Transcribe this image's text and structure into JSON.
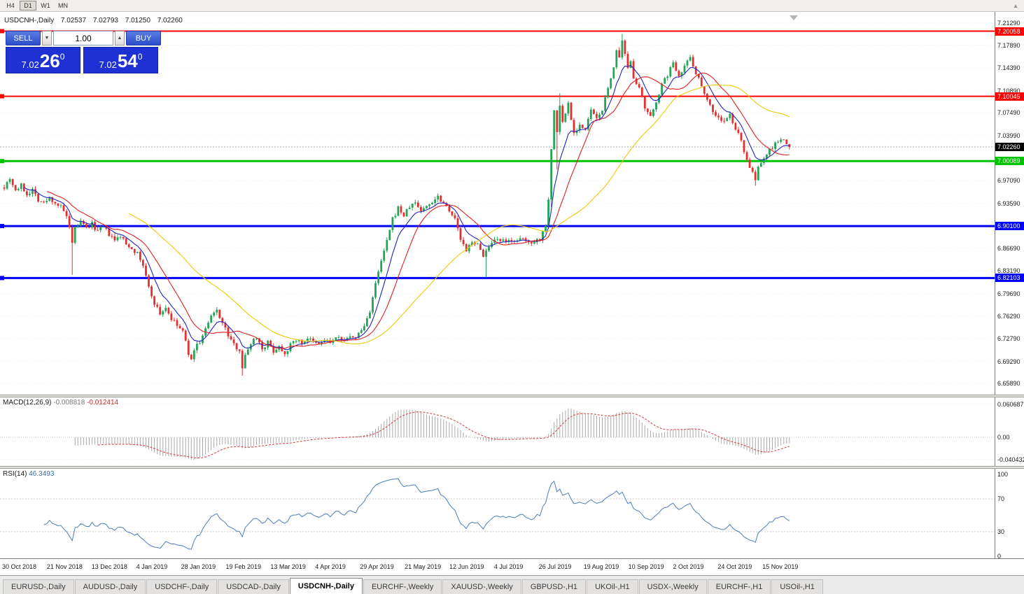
{
  "accent_colors": {
    "resistance_red": "#ff0000",
    "support_green": "#00c300",
    "support_blue": "#0000ff",
    "current_black": "#000000",
    "trade_blue": "#1d31d4"
  },
  "toolbar": {
    "timeframes": [
      {
        "label": "H4",
        "active": false
      },
      {
        "label": "D1",
        "active": true
      },
      {
        "label": "W1",
        "active": false
      },
      {
        "label": "MN",
        "active": false
      }
    ]
  },
  "chart_header": {
    "symbol": "USDCNH-,Daily",
    "open": "7.02537",
    "high": "7.02793",
    "low": "7.01250",
    "close": "7.02260"
  },
  "trade_panel": {
    "sell_label": "SELL",
    "buy_label": "BUY",
    "volume": "1.00",
    "sell_price": {
      "prefix": "7.02",
      "pips": "26",
      "pipette": "0"
    },
    "buy_price": {
      "prefix": "7.02",
      "pips": "54",
      "pipette": "0"
    }
  },
  "indicators": {
    "macd": {
      "title": "MACD(12,26,9)",
      "value_main": "-0.008818",
      "value_signal": "-0.012414",
      "axis_labels": [
        "0.060687",
        "0.00",
        "-0.040432"
      ]
    },
    "rsi": {
      "title": "RSI(14)",
      "value": "46.3493",
      "axis_labels": [
        "100",
        "70",
        "30",
        "0"
      ]
    }
  },
  "date_axis": [
    "30 Oct 2018",
    "21 Nov 2018",
    "13 Dec 2018",
    "4 Jan 2019",
    "28 Jan 2019",
    "19 Feb 2019",
    "13 Mar 2019",
    "4 Apr 2019",
    "29 Apr 2019",
    "21 May 2019",
    "12 Jun 2019",
    "4 Jul 2019",
    "26 Jul 2019",
    "19 Aug 2019",
    "10 Sep 2019",
    "2 Oct 2019",
    "24 Oct 2019",
    "15 Nov 2019"
  ],
  "tabbar": {
    "tabs": [
      {
        "label": "EURUSD-,Daily",
        "active": false
      },
      {
        "label": "AUDUSD-,Daily",
        "active": false
      },
      {
        "label": "USDCHF-,Daily",
        "active": false
      },
      {
        "label": "USDCAD-,Daily",
        "active": false
      },
      {
        "label": "USDCNH-,Daily",
        "active": true
      },
      {
        "label": "EURCHF-,Weekly",
        "active": false
      },
      {
        "label": "XAUUSD-,Weekly",
        "active": false
      },
      {
        "label": "GBPUSD-,H1",
        "active": false
      },
      {
        "label": "UKOil-,H1",
        "active": false
      },
      {
        "label": "USDX-,Weekly",
        "active": false
      },
      {
        "label": "EURCHF-,H1",
        "active": false
      },
      {
        "label": "USOil-,H1",
        "active": false
      }
    ]
  },
  "chart_data": {
    "type": "candlestick",
    "symbol": "USDCNH",
    "timeframe": "Daily",
    "y_axis_labels": [
      "7.21290",
      "7.17890",
      "7.14390",
      "7.10890",
      "7.07490",
      "7.03990",
      "6.97090",
      "6.93590",
      "6.86690",
      "6.83190",
      "6.79690",
      "6.76290",
      "6.72790",
      "6.69290",
      "6.65890"
    ],
    "y_range": [
      6.6589,
      7.2129
    ],
    "horizontal_lines": [
      {
        "price": 7.20058,
        "label": "7.20058",
        "color": "#ff0000",
        "width": 2
      },
      {
        "price": 7.10045,
        "label": "7.10045",
        "color": "#ff0000",
        "width": 2
      },
      {
        "price": 7.00089,
        "label": "7.00089",
        "color": "#00c300",
        "width": 3
      },
      {
        "price": 6.901,
        "label": "6.90100",
        "color": "#0000ff",
        "width": 3
      },
      {
        "price": 6.82103,
        "label": "6.82103",
        "color": "#0000ff",
        "width": 3
      }
    ],
    "current_price": {
      "value": 7.0226,
      "label": "7.02260",
      "badge_color": "#000000"
    },
    "candles": {
      "count": 278,
      "up_color": "#23a456",
      "down_color": "#e03030",
      "last_close": 7.0226,
      "close_anchors": [
        [
          0,
          6.962
        ],
        [
          2,
          6.975
        ],
        [
          4,
          6.956
        ],
        [
          6,
          6.963
        ],
        [
          8,
          6.95
        ],
        [
          10,
          6.957
        ],
        [
          12,
          6.942
        ],
        [
          14,
          6.936
        ],
        [
          16,
          6.944
        ],
        [
          18,
          6.937
        ],
        [
          20,
          6.93
        ],
        [
          22,
          6.916
        ],
        [
          23,
          6.896
        ],
        [
          24,
          6.872
        ],
        [
          25,
          6.898
        ],
        [
          27,
          6.907
        ],
        [
          29,
          6.897
        ],
        [
          31,
          6.904
        ],
        [
          33,
          6.893
        ],
        [
          35,
          6.899
        ],
        [
          37,
          6.888
        ],
        [
          39,
          6.878
        ],
        [
          41,
          6.886
        ],
        [
          43,
          6.873
        ],
        [
          45,
          6.868
        ],
        [
          47,
          6.858
        ],
        [
          49,
          6.841
        ],
        [
          51,
          6.806
        ],
        [
          53,
          6.783
        ],
        [
          55,
          6.766
        ],
        [
          57,
          6.776
        ],
        [
          59,
          6.758
        ],
        [
          61,
          6.748
        ],
        [
          63,
          6.739
        ],
        [
          65,
          6.706
        ],
        [
          66,
          6.693
        ],
        [
          67,
          6.713
        ],
        [
          69,
          6.723
        ],
        [
          71,
          6.742
        ],
        [
          73,
          6.761
        ],
        [
          75,
          6.772
        ],
        [
          77,
          6.752
        ],
        [
          79,
          6.733
        ],
        [
          81,
          6.718
        ],
        [
          83,
          6.712
        ],
        [
          84,
          6.684
        ],
        [
          85,
          6.701
        ],
        [
          87,
          6.722
        ],
        [
          89,
          6.731
        ],
        [
          91,
          6.713
        ],
        [
          93,
          6.722
        ],
        [
          95,
          6.709
        ],
        [
          97,
          6.716
        ],
        [
          99,
          6.706
        ],
        [
          101,
          6.718
        ],
        [
          103,
          6.727
        ],
        [
          105,
          6.721
        ],
        [
          107,
          6.729
        ],
        [
          109,
          6.722
        ],
        [
          111,
          6.719
        ],
        [
          113,
          6.726
        ],
        [
          115,
          6.722
        ],
        [
          117,
          6.729
        ],
        [
          119,
          6.725
        ],
        [
          121,
          6.731
        ],
        [
          123,
          6.727
        ],
        [
          125,
          6.735
        ],
        [
          127,
          6.747
        ],
        [
          129,
          6.771
        ],
        [
          131,
          6.811
        ],
        [
          133,
          6.847
        ],
        [
          135,
          6.877
        ],
        [
          137,
          6.911
        ],
        [
          139,
          6.929
        ],
        [
          141,
          6.917
        ],
        [
          143,
          6.931
        ],
        [
          145,
          6.937
        ],
        [
          147,
          6.925
        ],
        [
          149,
          6.931
        ],
        [
          151,
          6.939
        ],
        [
          153,
          6.947
        ],
        [
          155,
          6.937
        ],
        [
          157,
          6.927
        ],
        [
          159,
          6.911
        ],
        [
          161,
          6.881
        ],
        [
          163,
          6.861
        ],
        [
          165,
          6.879
        ],
        [
          167,
          6.871
        ],
        [
          169,
          6.857
        ],
        [
          171,
          6.867
        ],
        [
          173,
          6.877
        ],
        [
          175,
          6.879
        ],
        [
          177,
          6.875
        ],
        [
          179,
          6.881
        ],
        [
          181,
          6.877
        ],
        [
          183,
          6.881
        ],
        [
          185,
          6.875
        ],
        [
          187,
          6.879
        ],
        [
          189,
          6.881
        ],
        [
          191,
          6.904
        ],
        [
          192,
          6.944
        ],
        [
          193,
          7.018
        ],
        [
          194,
          7.078
        ],
        [
          195,
          7.046
        ],
        [
          196,
          7.086
        ],
        [
          197,
          7.06
        ],
        [
          199,
          7.09
        ],
        [
          201,
          7.044
        ],
        [
          203,
          7.057
        ],
        [
          205,
          7.047
        ],
        [
          207,
          7.08
        ],
        [
          209,
          7.064
        ],
        [
          211,
          7.081
        ],
        [
          213,
          7.111
        ],
        [
          215,
          7.147
        ],
        [
          216,
          7.171
        ],
        [
          217,
          7.157
        ],
        [
          218,
          7.183
        ],
        [
          219,
          7.163
        ],
        [
          220,
          7.141
        ],
        [
          221,
          7.157
        ],
        [
          222,
          7.131
        ],
        [
          224,
          7.111
        ],
        [
          226,
          7.081
        ],
        [
          228,
          7.067
        ],
        [
          230,
          7.094
        ],
        [
          232,
          7.117
        ],
        [
          234,
          7.134
        ],
        [
          236,
          7.151
        ],
        [
          238,
          7.134
        ],
        [
          240,
          7.147
        ],
        [
          242,
          7.161
        ],
        [
          244,
          7.137
        ],
        [
          246,
          7.117
        ],
        [
          248,
          7.097
        ],
        [
          250,
          7.077
        ],
        [
          252,
          7.067
        ],
        [
          254,
          7.061
        ],
        [
          256,
          7.071
        ],
        [
          258,
          7.051
        ],
        [
          260,
          7.031
        ],
        [
          262,
          7.004
        ],
        [
          264,
          6.981
        ],
        [
          265,
          6.971
        ],
        [
          266,
          6.991
        ],
        [
          268,
          7.007
        ],
        [
          270,
          7.017
        ],
        [
          272,
          7.027
        ],
        [
          274,
          7.034
        ],
        [
          276,
          7.028
        ],
        [
          277,
          7.0226
        ]
      ],
      "wick_overrides": [
        {
          "i": 24,
          "low": 6.826
        },
        {
          "i": 84,
          "low": 6.671
        },
        {
          "i": 170,
          "low": 6.822
        },
        {
          "i": 193,
          "low": 6.93
        },
        {
          "i": 195,
          "low": 6.988
        },
        {
          "i": 196,
          "high": 7.105
        },
        {
          "i": 218,
          "high": 7.1965
        },
        {
          "i": 265,
          "low": 6.963
        }
      ]
    },
    "moving_averages": [
      {
        "type": "ema",
        "period": 8,
        "color": "#2424c4"
      },
      {
        "type": "sma",
        "period": 16,
        "color": "#e02020"
      },
      {
        "type": "sma",
        "period": 45,
        "color": "#eec908"
      }
    ],
    "macd": {
      "fast": 12,
      "slow": 26,
      "signal": 9,
      "histogram_color": "#a9a9a9",
      "signal_color": "#d23a3a",
      "axis_values": [
        0.060687,
        0.0,
        -0.040432
      ]
    },
    "rsi": {
      "period": 14,
      "line_color": "#4a7ebb",
      "levels": [
        70,
        30
      ],
      "axis_values": [
        100,
        70,
        30,
        0
      ]
    }
  }
}
